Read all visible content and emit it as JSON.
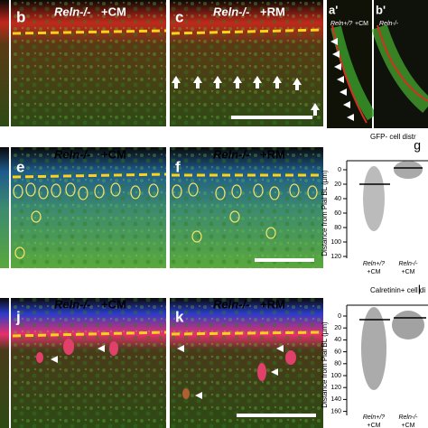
{
  "panels": [
    {
      "letter": "b",
      "genotype": "Reln-/-",
      "condition": "+CM"
    },
    {
      "letter": "c",
      "genotype": "Reln-/-",
      "condition": "+RM"
    },
    {
      "letter": "e",
      "genotype": "Reln-/-",
      "condition": "+CM"
    },
    {
      "letter": "f",
      "genotype": "Reln-/-",
      "condition": "+RM"
    },
    {
      "letter": "j",
      "genotype": "Reln-/-",
      "condition": "+CM"
    },
    {
      "letter": "k",
      "genotype": "Reln-/-",
      "condition": "+RM"
    }
  ],
  "insets": [
    {
      "letter": "a'",
      "genotype": "Reln+/?",
      "condition": "+CM"
    },
    {
      "letter": "b'",
      "genotype": "Reln-/-"
    }
  ],
  "graphs": [
    {
      "letter": "g",
      "title": "GFP- cell distr",
      "y_label": "Distance from Pial BL (µm)",
      "ticks": [
        "0",
        "20",
        "40",
        "60",
        "80",
        "100",
        "120"
      ],
      "groups": [
        {
          "genotype": "Reln+/?",
          "condition": "+CM"
        },
        {
          "genotype": "Reln-/-",
          "condition": "+CM"
        }
      ]
    },
    {
      "letter": "l",
      "title": "Calretinin+ cell di",
      "y_label": "Distance from Pial BL (µm)",
      "ticks": [
        "0",
        "20",
        "40",
        "60",
        "80",
        "100",
        "120",
        "140",
        "160"
      ],
      "groups": [
        {
          "genotype": "Reln+/?",
          "condition": "+CM"
        },
        {
          "genotype": "Reln-/-",
          "condition": "+CM"
        }
      ]
    }
  ]
}
